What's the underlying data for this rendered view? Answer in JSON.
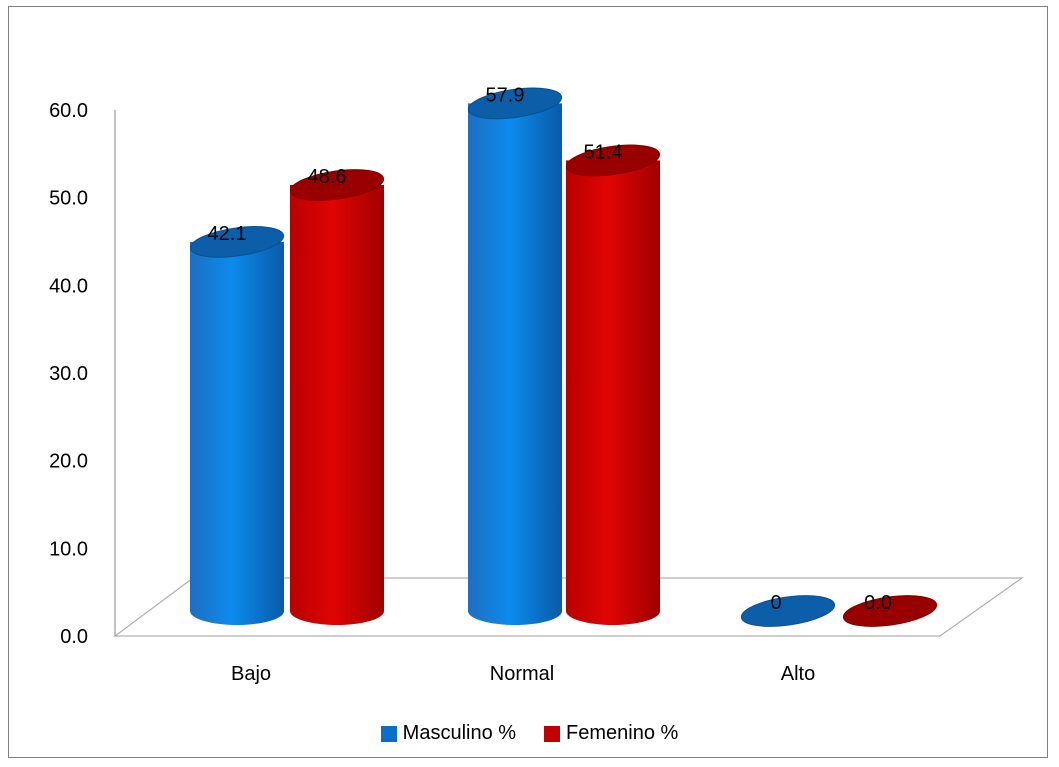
{
  "chart_data": {
    "type": "bar",
    "style": "3d-cylinder",
    "categories": [
      "Bajo",
      "Normal",
      "Alto"
    ],
    "series": [
      {
        "name": "Masculino %",
        "values": [
          42.1,
          57.9,
          0
        ],
        "labels": [
          "42.1",
          "57.9",
          "0"
        ],
        "color": "#0a6fc7"
      },
      {
        "name": "Femenino %",
        "values": [
          48.6,
          51.4,
          0.0
        ],
        "labels": [
          "48.6",
          "51.4",
          "0.0"
        ],
        "color": "#c00000"
      }
    ],
    "yticks": [
      "0.0",
      "10.0",
      "20.0",
      "30.0",
      "40.0",
      "50.0",
      "60.0"
    ],
    "ylim": [
      0,
      60
    ],
    "legend_position": "bottom",
    "grid": false
  }
}
